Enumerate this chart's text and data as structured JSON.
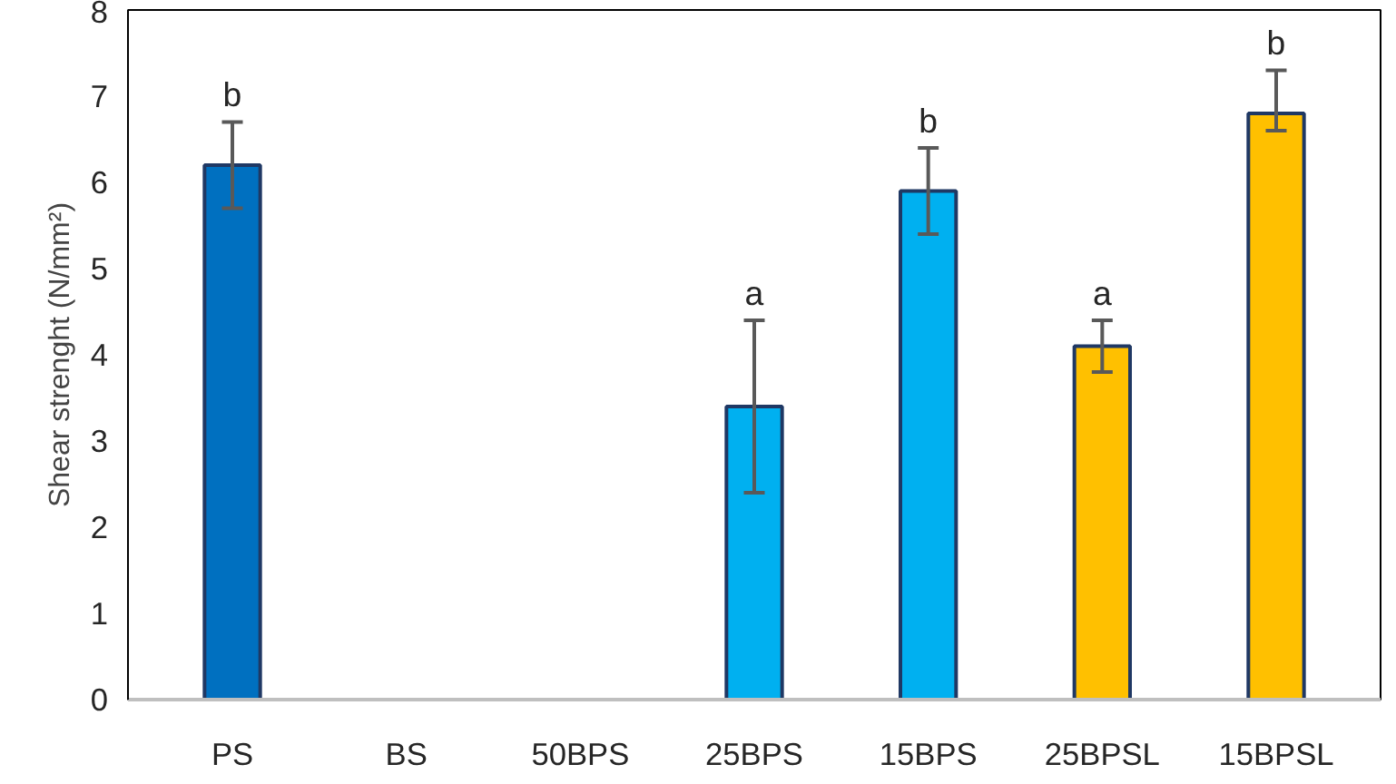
{
  "chart_data": {
    "type": "bar",
    "ylabel": "Shear strenght (N/mm²)",
    "categories": [
      "PS",
      "BS",
      "50BPS",
      "25BPS",
      "15BPS",
      "25BPSL",
      "15BPSL"
    ],
    "values": [
      6.2,
      null,
      null,
      3.4,
      5.9,
      4.1,
      6.8
    ],
    "colors": [
      "#0070c0",
      "#00b0f0",
      "#00b0f0",
      "#00b0f0",
      "#00b0f0",
      "#ffc000",
      "#ffc000"
    ],
    "errors": [
      0.5,
      null,
      null,
      1.0,
      0.5,
      0.3,
      [
        6.6,
        7.3
      ]
    ],
    "ylim": [
      0,
      8
    ],
    "yticks": [
      0,
      1,
      2,
      3,
      4,
      5,
      6,
      7,
      8
    ],
    "grid": false,
    "annotations": [
      {
        "text": "b",
        "x": "PS",
        "y": 6.8
      },
      {
        "text": "a",
        "x": "25BPS",
        "y": 4.5
      },
      {
        "text": "b",
        "x": "15BPS",
        "y": 6.5
      },
      {
        "text": "a",
        "x": "25BPSL",
        "y": 4.5
      },
      {
        "text": "b",
        "x": "15BPSL",
        "y": 7.4
      }
    ]
  }
}
